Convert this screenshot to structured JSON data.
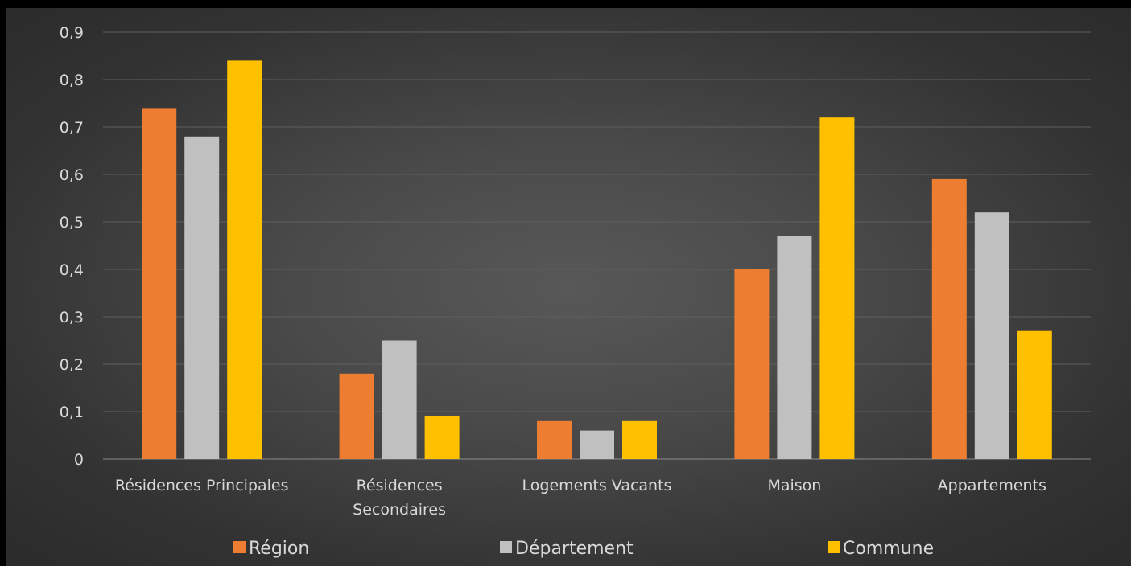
{
  "chart_data": {
    "type": "bar",
    "categories": [
      [
        "Résidences Principales"
      ],
      [
        "Résidences",
        "Secondaires"
      ],
      [
        "Logements Vacants"
      ],
      [
        "Maison"
      ],
      [
        "Appartements"
      ]
    ],
    "series": [
      {
        "name": "Région",
        "color": "#ED7D31",
        "values": [
          0.74,
          0.18,
          0.08,
          0.4,
          0.59
        ]
      },
      {
        "name": "Département",
        "color": "#C0C0C0",
        "values": [
          0.68,
          0.25,
          0.06,
          0.47,
          0.52
        ]
      },
      {
        "name": "Commune",
        "color": "#FFC000",
        "values": [
          0.84,
          0.09,
          0.08,
          0.72,
          0.27
        ]
      }
    ],
    "yticks": [
      "0",
      "0,1",
      "0,2",
      "0,3",
      "0,4",
      "0,5",
      "0,6",
      "0,7",
      "0,8",
      "0,9"
    ],
    "ylim": [
      0,
      0.9
    ],
    "grid": true,
    "legend_position": "bottom",
    "title": "",
    "xlabel": "",
    "ylabel": ""
  }
}
